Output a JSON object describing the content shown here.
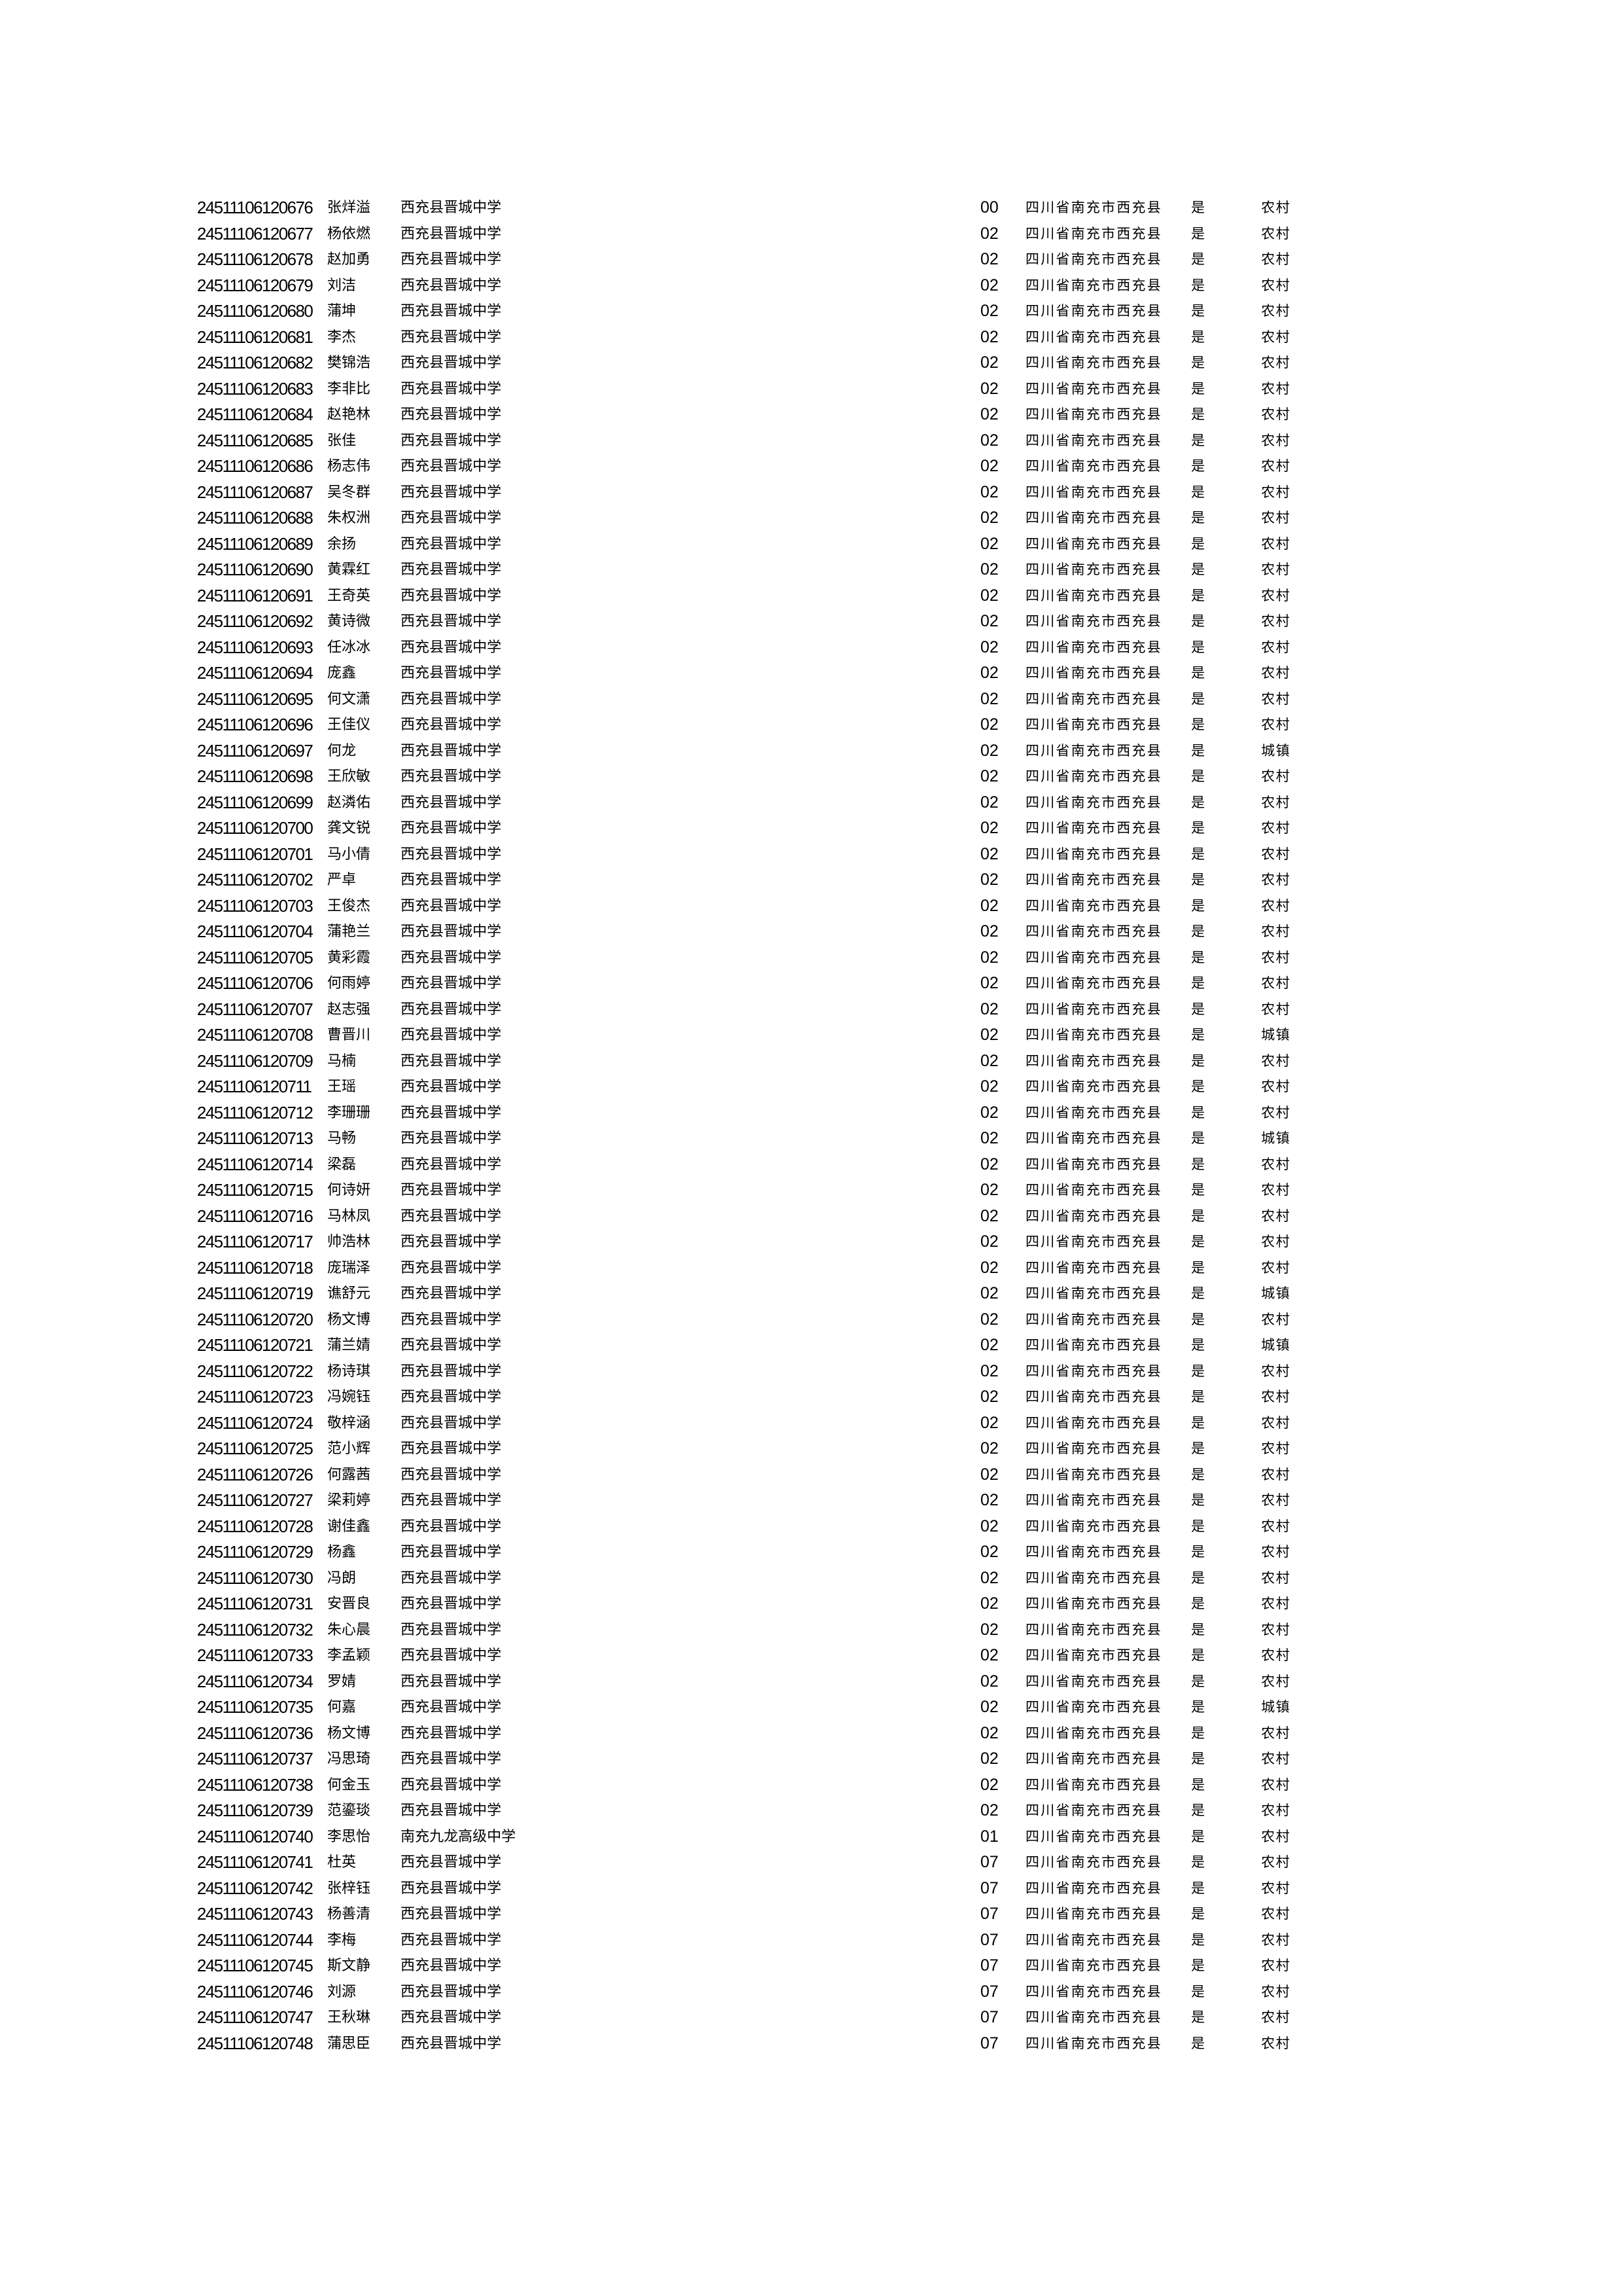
{
  "rows": [
    [
      "24511106120676",
      "张烊溢",
      "西充县晋城中学",
      "00",
      "四川省南充市西充县",
      "是",
      "农村"
    ],
    [
      "24511106120677",
      "杨依燃",
      "西充县晋城中学",
      "02",
      "四川省南充市西充县",
      "是",
      "农村"
    ],
    [
      "24511106120678",
      "赵加勇",
      "西充县晋城中学",
      "02",
      "四川省南充市西充县",
      "是",
      "农村"
    ],
    [
      "24511106120679",
      "刘洁",
      "西充县晋城中学",
      "02",
      "四川省南充市西充县",
      "是",
      "农村"
    ],
    [
      "24511106120680",
      "蒲坤",
      "西充县晋城中学",
      "02",
      "四川省南充市西充县",
      "是",
      "农村"
    ],
    [
      "24511106120681",
      "李杰",
      "西充县晋城中学",
      "02",
      "四川省南充市西充县",
      "是",
      "农村"
    ],
    [
      "24511106120682",
      "樊锦浩",
      "西充县晋城中学",
      "02",
      "四川省南充市西充县",
      "是",
      "农村"
    ],
    [
      "24511106120683",
      "李非比",
      "西充县晋城中学",
      "02",
      "四川省南充市西充县",
      "是",
      "农村"
    ],
    [
      "24511106120684",
      "赵艳林",
      "西充县晋城中学",
      "02",
      "四川省南充市西充县",
      "是",
      "农村"
    ],
    [
      "24511106120685",
      "张佳",
      "西充县晋城中学",
      "02",
      "四川省南充市西充县",
      "是",
      "农村"
    ],
    [
      "24511106120686",
      "杨志伟",
      "西充县晋城中学",
      "02",
      "四川省南充市西充县",
      "是",
      "农村"
    ],
    [
      "24511106120687",
      "吴冬群",
      "西充县晋城中学",
      "02",
      "四川省南充市西充县",
      "是",
      "农村"
    ],
    [
      "24511106120688",
      "朱权洲",
      "西充县晋城中学",
      "02",
      "四川省南充市西充县",
      "是",
      "农村"
    ],
    [
      "24511106120689",
      "余扬",
      "西充县晋城中学",
      "02",
      "四川省南充市西充县",
      "是",
      "农村"
    ],
    [
      "24511106120690",
      "黄霖红",
      "西充县晋城中学",
      "02",
      "四川省南充市西充县",
      "是",
      "农村"
    ],
    [
      "24511106120691",
      "王奇英",
      "西充县晋城中学",
      "02",
      "四川省南充市西充县",
      "是",
      "农村"
    ],
    [
      "24511106120692",
      "黄诗微",
      "西充县晋城中学",
      "02",
      "四川省南充市西充县",
      "是",
      "农村"
    ],
    [
      "24511106120693",
      "任冰冰",
      "西充县晋城中学",
      "02",
      "四川省南充市西充县",
      "是",
      "农村"
    ],
    [
      "24511106120694",
      "庞鑫",
      "西充县晋城中学",
      "02",
      "四川省南充市西充县",
      "是",
      "农村"
    ],
    [
      "24511106120695",
      "何文潇",
      "西充县晋城中学",
      "02",
      "四川省南充市西充县",
      "是",
      "农村"
    ],
    [
      "24511106120696",
      "王佳仪",
      "西充县晋城中学",
      "02",
      "四川省南充市西充县",
      "是",
      "农村"
    ],
    [
      "24511106120697",
      "何龙",
      "西充县晋城中学",
      "02",
      "四川省南充市西充县",
      "是",
      "城镇"
    ],
    [
      "24511106120698",
      "王欣敏",
      "西充县晋城中学",
      "02",
      "四川省南充市西充县",
      "是",
      "农村"
    ],
    [
      "24511106120699",
      "赵潾佑",
      "西充县晋城中学",
      "02",
      "四川省南充市西充县",
      "是",
      "农村"
    ],
    [
      "24511106120700",
      "龚文锐",
      "西充县晋城中学",
      "02",
      "四川省南充市西充县",
      "是",
      "农村"
    ],
    [
      "24511106120701",
      "马小倩",
      "西充县晋城中学",
      "02",
      "四川省南充市西充县",
      "是",
      "农村"
    ],
    [
      "24511106120702",
      "严卓",
      "西充县晋城中学",
      "02",
      "四川省南充市西充县",
      "是",
      "农村"
    ],
    [
      "24511106120703",
      "王俊杰",
      "西充县晋城中学",
      "02",
      "四川省南充市西充县",
      "是",
      "农村"
    ],
    [
      "24511106120704",
      "蒲艳兰",
      "西充县晋城中学",
      "02",
      "四川省南充市西充县",
      "是",
      "农村"
    ],
    [
      "24511106120705",
      "黄彩霞",
      "西充县晋城中学",
      "02",
      "四川省南充市西充县",
      "是",
      "农村"
    ],
    [
      "24511106120706",
      "何雨婷",
      "西充县晋城中学",
      "02",
      "四川省南充市西充县",
      "是",
      "农村"
    ],
    [
      "24511106120707",
      "赵志强",
      "西充县晋城中学",
      "02",
      "四川省南充市西充县",
      "是",
      "农村"
    ],
    [
      "24511106120708",
      "曹晋川",
      "西充县晋城中学",
      "02",
      "四川省南充市西充县",
      "是",
      "城镇"
    ],
    [
      "24511106120709",
      "马楠",
      "西充县晋城中学",
      "02",
      "四川省南充市西充县",
      "是",
      "农村"
    ],
    [
      "24511106120711",
      "王瑶",
      "西充县晋城中学",
      "02",
      "四川省南充市西充县",
      "是",
      "农村"
    ],
    [
      "24511106120712",
      "李珊珊",
      "西充县晋城中学",
      "02",
      "四川省南充市西充县",
      "是",
      "农村"
    ],
    [
      "24511106120713",
      "马畅",
      "西充县晋城中学",
      "02",
      "四川省南充市西充县",
      "是",
      "城镇"
    ],
    [
      "24511106120714",
      "梁磊",
      "西充县晋城中学",
      "02",
      "四川省南充市西充县",
      "是",
      "农村"
    ],
    [
      "24511106120715",
      "何诗妍",
      "西充县晋城中学",
      "02",
      "四川省南充市西充县",
      "是",
      "农村"
    ],
    [
      "24511106120716",
      "马林凤",
      "西充县晋城中学",
      "02",
      "四川省南充市西充县",
      "是",
      "农村"
    ],
    [
      "24511106120717",
      "帅浩林",
      "西充县晋城中学",
      "02",
      "四川省南充市西充县",
      "是",
      "农村"
    ],
    [
      "24511106120718",
      "庞瑞泽",
      "西充县晋城中学",
      "02",
      "四川省南充市西充县",
      "是",
      "农村"
    ],
    [
      "24511106120719",
      "谯舒元",
      "西充县晋城中学",
      "02",
      "四川省南充市西充县",
      "是",
      "城镇"
    ],
    [
      "24511106120720",
      "杨文博",
      "西充县晋城中学",
      "02",
      "四川省南充市西充县",
      "是",
      "农村"
    ],
    [
      "24511106120721",
      "蒲兰婧",
      "西充县晋城中学",
      "02",
      "四川省南充市西充县",
      "是",
      "城镇"
    ],
    [
      "24511106120722",
      "杨诗琪",
      "西充县晋城中学",
      "02",
      "四川省南充市西充县",
      "是",
      "农村"
    ],
    [
      "24511106120723",
      "冯婉钰",
      "西充县晋城中学",
      "02",
      "四川省南充市西充县",
      "是",
      "农村"
    ],
    [
      "24511106120724",
      "敬梓涵",
      "西充县晋城中学",
      "02",
      "四川省南充市西充县",
      "是",
      "农村"
    ],
    [
      "24511106120725",
      "范小辉",
      "西充县晋城中学",
      "02",
      "四川省南充市西充县",
      "是",
      "农村"
    ],
    [
      "24511106120726",
      "何露茜",
      "西充县晋城中学",
      "02",
      "四川省南充市西充县",
      "是",
      "农村"
    ],
    [
      "24511106120727",
      "梁莉婷",
      "西充县晋城中学",
      "02",
      "四川省南充市西充县",
      "是",
      "农村"
    ],
    [
      "24511106120728",
      "谢佳鑫",
      "西充县晋城中学",
      "02",
      "四川省南充市西充县",
      "是",
      "农村"
    ],
    [
      "24511106120729",
      "杨鑫",
      "西充县晋城中学",
      "02",
      "四川省南充市西充县",
      "是",
      "农村"
    ],
    [
      "24511106120730",
      "冯朗",
      "西充县晋城中学",
      "02",
      "四川省南充市西充县",
      "是",
      "农村"
    ],
    [
      "24511106120731",
      "安晋良",
      "西充县晋城中学",
      "02",
      "四川省南充市西充县",
      "是",
      "农村"
    ],
    [
      "24511106120732",
      "朱心晨",
      "西充县晋城中学",
      "02",
      "四川省南充市西充县",
      "是",
      "农村"
    ],
    [
      "24511106120733",
      "李孟颖",
      "西充县晋城中学",
      "02",
      "四川省南充市西充县",
      "是",
      "农村"
    ],
    [
      "24511106120734",
      "罗婧",
      "西充县晋城中学",
      "02",
      "四川省南充市西充县",
      "是",
      "农村"
    ],
    [
      "24511106120735",
      "何嘉",
      "西充县晋城中学",
      "02",
      "四川省南充市西充县",
      "是",
      "城镇"
    ],
    [
      "24511106120736",
      "杨文博",
      "西充县晋城中学",
      "02",
      "四川省南充市西充县",
      "是",
      "农村"
    ],
    [
      "24511106120737",
      "冯思琦",
      "西充县晋城中学",
      "02",
      "四川省南充市西充县",
      "是",
      "农村"
    ],
    [
      "24511106120738",
      "何金玉",
      "西充县晋城中学",
      "02",
      "四川省南充市西充县",
      "是",
      "农村"
    ],
    [
      "24511106120739",
      "范鎏琰",
      "西充县晋城中学",
      "02",
      "四川省南充市西充县",
      "是",
      "农村"
    ],
    [
      "24511106120740",
      "李思怡",
      "南充九龙高级中学",
      "01",
      "四川省南充市西充县",
      "是",
      "农村"
    ],
    [
      "24511106120741",
      "杜英",
      "西充县晋城中学",
      "07",
      "四川省南充市西充县",
      "是",
      "农村"
    ],
    [
      "24511106120742",
      "张梓钰",
      "西充县晋城中学",
      "07",
      "四川省南充市西充县",
      "是",
      "农村"
    ],
    [
      "24511106120743",
      "杨善清",
      "西充县晋城中学",
      "07",
      "四川省南充市西充县",
      "是",
      "农村"
    ],
    [
      "24511106120744",
      "李梅",
      "西充县晋城中学",
      "07",
      "四川省南充市西充县",
      "是",
      "农村"
    ],
    [
      "24511106120745",
      "斯文静",
      "西充县晋城中学",
      "07",
      "四川省南充市西充县",
      "是",
      "农村"
    ],
    [
      "24511106120746",
      "刘源",
      "西充县晋城中学",
      "07",
      "四川省南充市西充县",
      "是",
      "农村"
    ],
    [
      "24511106120747",
      "王秋琳",
      "西充县晋城中学",
      "07",
      "四川省南充市西充县",
      "是",
      "农村"
    ],
    [
      "24511106120748",
      "蒲思臣",
      "西充县晋城中学",
      "07",
      "四川省南充市西充县",
      "是",
      "农村"
    ]
  ]
}
